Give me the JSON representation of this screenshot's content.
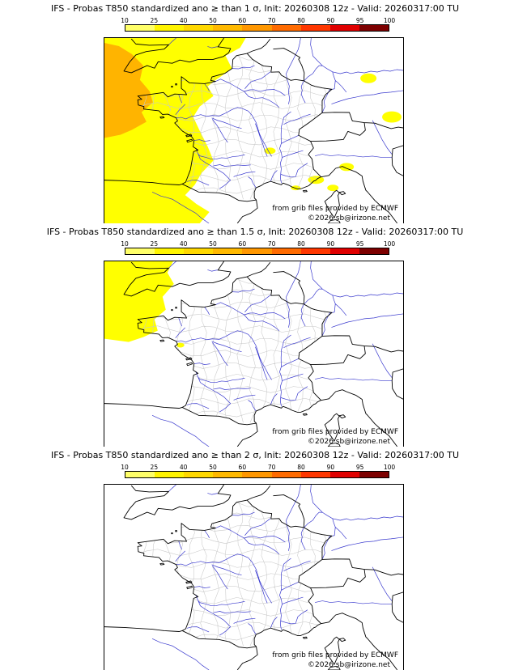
{
  "panels": [
    {
      "sigma": "1",
      "title": "IFS - Probas T850  standardized ano ≥ than 1 σ, Init: 20260308 12z - Valid: 20260317:00 TU"
    },
    {
      "sigma": "1.5",
      "title": "IFS - Probas T850  standardized ano ≥ than 1.5 σ, Init: 20260308 12z - Valid: 20260317:00 TU"
    },
    {
      "sigma": "2",
      "title": "IFS - Probas T850  standardized ano ≥ than 2 σ, Init: 20260308 12z - Valid: 20260317:00 TU"
    }
  ],
  "colorbar": {
    "tick_labels": [
      "10",
      "25",
      "40",
      "50",
      "60",
      "70",
      "80",
      "90",
      "95",
      "100"
    ],
    "segment_colors": [
      "#ffff69",
      "#fff400",
      "#ffd800",
      "#ffb900",
      "#ff9700",
      "#ff6b00",
      "#ff3700",
      "#e00000",
      "#7d0000"
    ]
  },
  "attribution": {
    "line1": "from grib files provided by ECMWF",
    "line2": "©2026 sb@irizone.net"
  },
  "map_colors": {
    "coast": "#000000",
    "river": "#3a3ace",
    "admin": "#c8c8c8",
    "prob_low": "#ffff00",
    "prob_mid": "#ffb400"
  }
}
